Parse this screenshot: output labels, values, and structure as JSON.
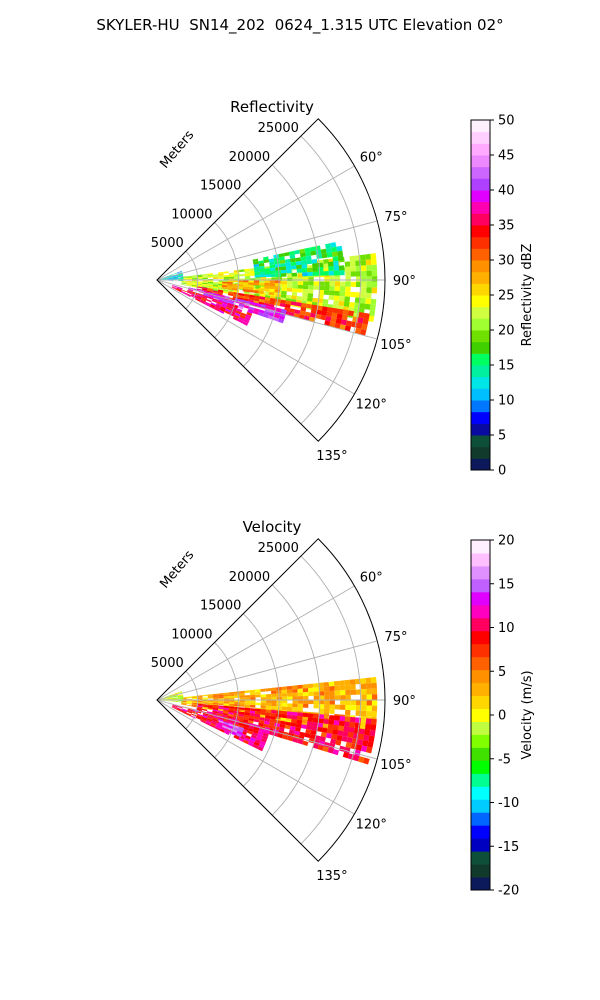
{
  "figure": {
    "title": "SKYLER-HU  SN14_202  0624_1.315 UTC Elevation 02°"
  },
  "chart_data": [
    {
      "type": "heatmap",
      "projection": "polar-sector",
      "title": "Reflectivity",
      "range_axis_label": "Meters",
      "range_ticks": [
        5000,
        10000,
        15000,
        20000,
        25000
      ],
      "range_limit": [
        0,
        28000
      ],
      "azimuth_ticks": [
        "60°",
        "75°",
        "90°",
        "105°",
        "120°",
        "135°"
      ],
      "azimuth_tick_values": [
        60,
        75,
        90,
        105,
        120,
        135
      ],
      "azimuth_limit": [
        45,
        135
      ],
      "grid": true,
      "colorbar": {
        "label": "Reflectivity dBZ",
        "min": 0,
        "max": 50,
        "ticks": [
          0,
          5,
          10,
          15,
          20,
          25,
          30,
          35,
          40,
          45,
          50
        ],
        "colors": [
          "#0c1a5b",
          "#123a2c",
          "#0e4f3a",
          "#0a0aa0",
          "#0000ff",
          "#0077ff",
          "#00bfff",
          "#00e5e5",
          "#00f0a0",
          "#00ff60",
          "#40d000",
          "#70e000",
          "#a0ff30",
          "#d0ff40",
          "#ffff00",
          "#ffd700",
          "#ffb000",
          "#ff9000",
          "#ff6000",
          "#ff3000",
          "#ff0000",
          "#ff0060",
          "#ff00b0",
          "#e000ff",
          "#b040ff",
          "#cc66ff",
          "#ee88ff",
          "#ffaaff",
          "#ffd0ff",
          "#fff0ff"
        ]
      },
      "echo_regions": [
        {
          "az": [
            83,
            100
          ],
          "range": [
            3000,
            27000
          ],
          "value": 22
        },
        {
          "az": [
            99,
            104
          ],
          "range": [
            5000,
            26000
          ],
          "value": 33
        },
        {
          "az": [
            103,
            109
          ],
          "range": [
            4000,
            16000
          ],
          "value": 40
        },
        {
          "az": [
            108,
            116
          ],
          "range": [
            2000,
            12000
          ],
          "value": 36
        },
        {
          "az": [
            78,
            88
          ],
          "range": [
            12000,
            23000
          ],
          "value": 15
        },
        {
          "az": [
            90,
            97
          ],
          "range": [
            8000,
            15000
          ],
          "value": 28
        },
        {
          "az": [
            70,
            92
          ],
          "range": [
            0,
            3000
          ],
          "value": 12
        }
      ]
    },
    {
      "type": "heatmap",
      "projection": "polar-sector",
      "title": "Velocity",
      "range_axis_label": "Meters",
      "range_ticks": [
        5000,
        10000,
        15000,
        20000,
        25000
      ],
      "range_limit": [
        0,
        28000
      ],
      "azimuth_ticks": [
        "60°",
        "75°",
        "90°",
        "105°",
        "120°",
        "135°"
      ],
      "azimuth_tick_values": [
        60,
        75,
        90,
        105,
        120,
        135
      ],
      "azimuth_limit": [
        45,
        135
      ],
      "grid": true,
      "colorbar": {
        "label": "Velocity (m/s)",
        "min": -20,
        "max": 20,
        "ticks": [
          -20,
          -15,
          -10,
          -5,
          0,
          5,
          10,
          15,
          20
        ],
        "colors": [
          "#0c1a5b",
          "#123a2c",
          "#0e4f3a",
          "#0000c0",
          "#0000ff",
          "#0066ff",
          "#00ccff",
          "#00ffff",
          "#00ff90",
          "#00ff00",
          "#40e000",
          "#80ff00",
          "#c0ff40",
          "#ffff00",
          "#ffd700",
          "#ffb000",
          "#ff9000",
          "#ff6000",
          "#ff3000",
          "#ff0000",
          "#ff0060",
          "#ff00c0",
          "#e000ff",
          "#c060ff",
          "#e090ff",
          "#ffc0ff",
          "#fff0ff"
        ]
      },
      "echo_regions": [
        {
          "az": [
            84,
            100
          ],
          "range": [
            3000,
            27000
          ],
          "value": 3
        },
        {
          "az": [
            95,
            106
          ],
          "range": [
            5000,
            27000
          ],
          "value": 9
        },
        {
          "az": [
            104,
            116
          ],
          "range": [
            2000,
            14000
          ],
          "value": 10
        },
        {
          "az": [
            108,
            113
          ],
          "range": [
            8000,
            11000
          ],
          "value": 14
        },
        {
          "az": [
            70,
            95
          ],
          "range": [
            0,
            3000
          ],
          "value": -1
        }
      ]
    }
  ]
}
